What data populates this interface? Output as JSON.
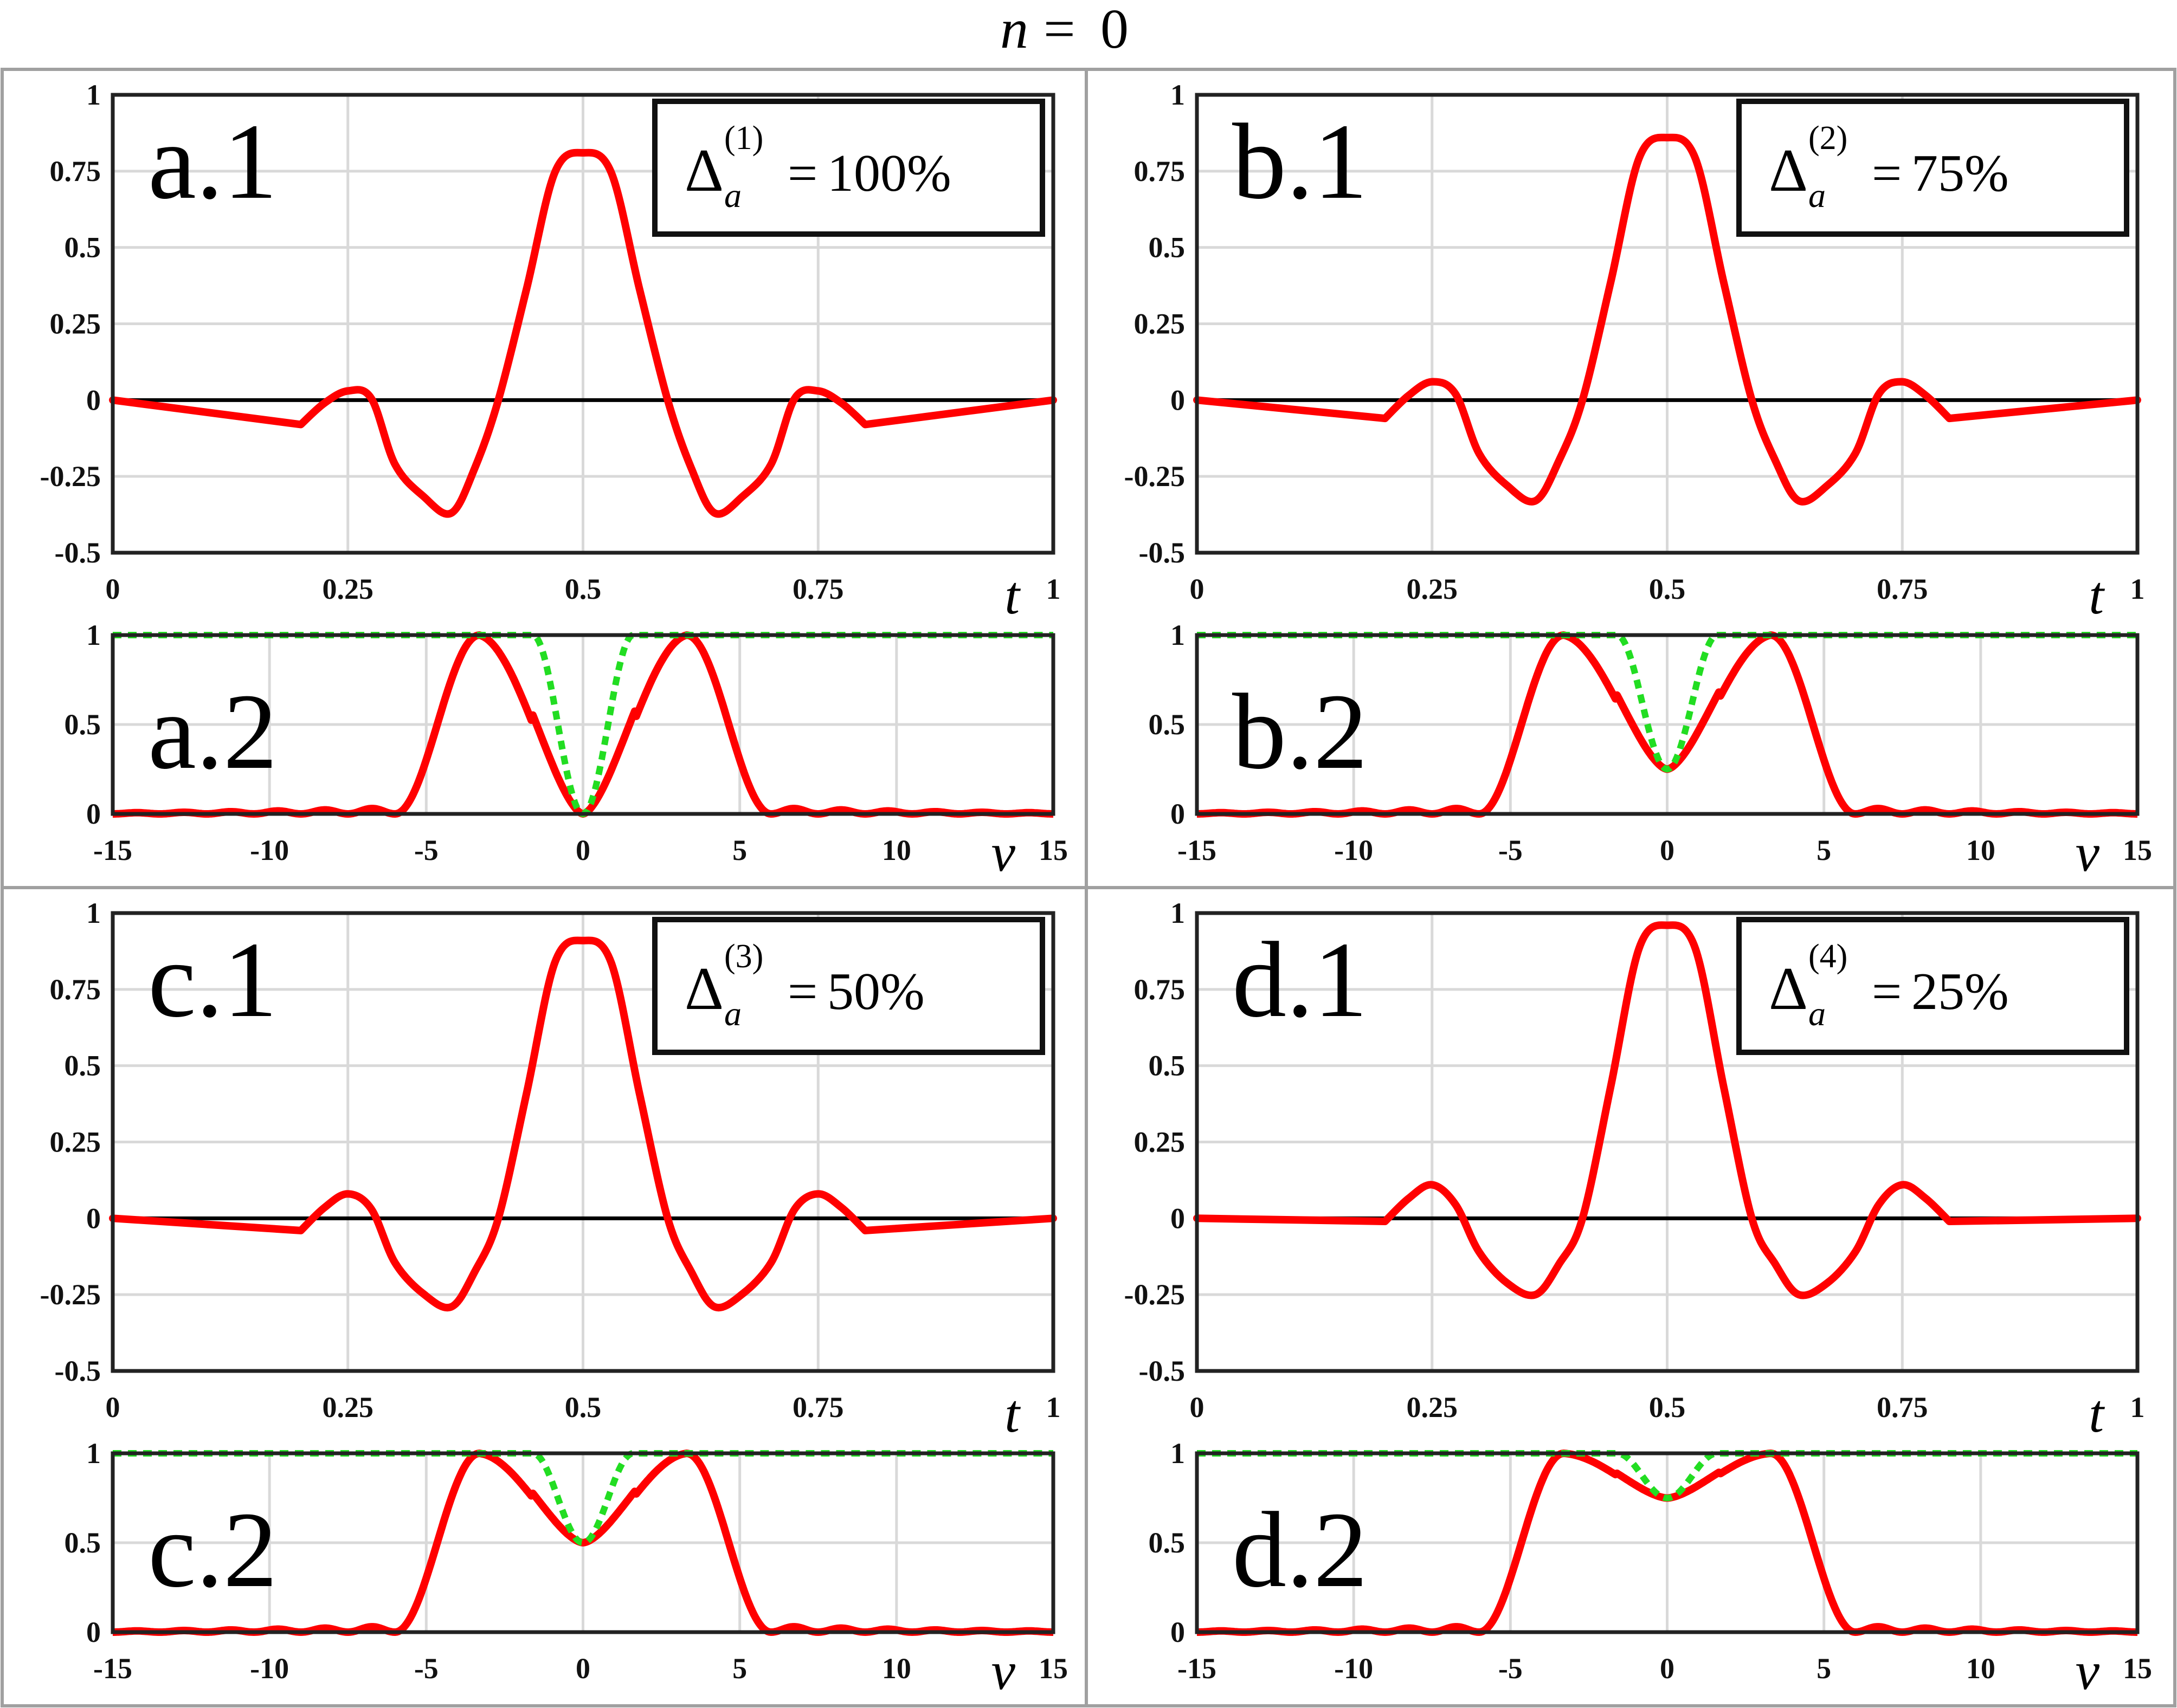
{
  "figure_title": {
    "var": "n",
    "eq": "=",
    "value": "0"
  },
  "chart_data": [
    {
      "id": "a",
      "type": "line",
      "top": {
        "label": "a.1",
        "xlabel": "t",
        "xlim": [
          0,
          1
        ],
        "ylim": [
          -0.5,
          1
        ],
        "xticks": [
          0,
          0.25,
          0.5,
          0.75,
          1
        ],
        "xtick_labels": [
          "0",
          "0.25",
          "0.5",
          "0.75",
          "1"
        ],
        "yticks": [
          -0.5,
          -0.25,
          0,
          0.25,
          0.5,
          0.75,
          1
        ],
        "ytick_labels": [
          "-0.5",
          "-0.25",
          "0",
          "0.25",
          "0.5",
          "0.75",
          "1"
        ],
        "series_color": "#ff0000",
        "zero_line_color": "#000000",
        "peak": 0.81,
        "side_min": -0.37,
        "side_max": 0.03,
        "edge_dip": -0.08,
        "annotation": {
          "symbol": "Δ",
          "sub": "a",
          "sup": "(1)",
          "eq": "=",
          "value": "100%"
        }
      },
      "bottom": {
        "label": "a.2",
        "xlabel": "ν",
        "xlim": [
          -15,
          15
        ],
        "ylim": [
          0,
          1
        ],
        "xticks": [
          -15,
          -10,
          -5,
          0,
          5,
          10,
          15
        ],
        "xtick_labels": [
          "-15",
          "-10",
          "-5",
          "0",
          "5",
          "10",
          "15"
        ],
        "yticks": [
          0,
          0.5,
          1
        ],
        "ytick_labels": [
          "0",
          "0.5",
          "1"
        ],
        "spectrum_color": "#ff0000",
        "filter_color": "#22dd22",
        "notch_min": 0.0
      }
    },
    {
      "id": "b",
      "type": "line",
      "top": {
        "label": "b.1",
        "xlabel": "t",
        "xlim": [
          0,
          1
        ],
        "ylim": [
          -0.5,
          1
        ],
        "xticks": [
          0,
          0.25,
          0.5,
          0.75,
          1
        ],
        "xtick_labels": [
          "0",
          "0.25",
          "0.5",
          "0.75",
          "1"
        ],
        "yticks": [
          -0.5,
          -0.25,
          0,
          0.25,
          0.5,
          0.75,
          1
        ],
        "ytick_labels": [
          "-0.5",
          "-0.25",
          "0",
          "0.25",
          "0.5",
          "0.75",
          "1"
        ],
        "series_color": "#ff0000",
        "zero_line_color": "#000000",
        "peak": 0.86,
        "side_min": -0.33,
        "side_max": 0.06,
        "edge_dip": -0.06,
        "annotation": {
          "symbol": "Δ",
          "sub": "a",
          "sup": "(2)",
          "eq": "=",
          "value": "75%"
        }
      },
      "bottom": {
        "label": "b.2",
        "xlabel": "ν",
        "xlim": [
          -15,
          15
        ],
        "ylim": [
          0,
          1
        ],
        "xticks": [
          -15,
          -10,
          -5,
          0,
          5,
          10,
          15
        ],
        "xtick_labels": [
          "-15",
          "-10",
          "-5",
          "0",
          "5",
          "10",
          "15"
        ],
        "yticks": [
          0,
          0.5,
          1
        ],
        "ytick_labels": [
          "0",
          "0.5",
          "1"
        ],
        "spectrum_color": "#ff0000",
        "filter_color": "#22dd22",
        "notch_min": 0.25
      }
    },
    {
      "id": "c",
      "type": "line",
      "top": {
        "label": "c.1",
        "xlabel": "t",
        "xlim": [
          0,
          1
        ],
        "ylim": [
          -0.5,
          1
        ],
        "xticks": [
          0,
          0.25,
          0.5,
          0.75,
          1
        ],
        "xtick_labels": [
          "0",
          "0.25",
          "0.5",
          "0.75",
          "1"
        ],
        "yticks": [
          -0.5,
          -0.25,
          0,
          0.25,
          0.5,
          0.75,
          1
        ],
        "ytick_labels": [
          "-0.5",
          "-0.25",
          "0",
          "0.25",
          "0.5",
          "0.75",
          "1"
        ],
        "series_color": "#ff0000",
        "zero_line_color": "#000000",
        "peak": 0.91,
        "side_min": -0.29,
        "side_max": 0.08,
        "edge_dip": -0.04,
        "annotation": {
          "symbol": "Δ",
          "sub": "a",
          "sup": "(3)",
          "eq": "=",
          "value": "50%"
        }
      },
      "bottom": {
        "label": "c.2",
        "xlabel": "ν",
        "xlim": [
          -15,
          15
        ],
        "ylim": [
          0,
          1
        ],
        "xticks": [
          -15,
          -10,
          -5,
          0,
          5,
          10,
          15
        ],
        "xtick_labels": [
          "-15",
          "-10",
          "-5",
          "0",
          "5",
          "10",
          "15"
        ],
        "yticks": [
          0,
          0.5,
          1
        ],
        "ytick_labels": [
          "0",
          "0.5",
          "1"
        ],
        "spectrum_color": "#ff0000",
        "filter_color": "#22dd22",
        "notch_min": 0.5
      }
    },
    {
      "id": "d",
      "type": "line",
      "top": {
        "label": "d.1",
        "xlabel": "t",
        "xlim": [
          0,
          1
        ],
        "ylim": [
          -0.5,
          1
        ],
        "xticks": [
          0,
          0.25,
          0.5,
          0.75,
          1
        ],
        "xtick_labels": [
          "0",
          "0.25",
          "0.5",
          "0.75",
          "1"
        ],
        "yticks": [
          -0.5,
          -0.25,
          0,
          0.25,
          0.5,
          0.75,
          1
        ],
        "ytick_labels": [
          "-0.5",
          "-0.25",
          "0",
          "0.25",
          "0.5",
          "0.75",
          "1"
        ],
        "series_color": "#ff0000",
        "zero_line_color": "#000000",
        "peak": 0.96,
        "side_min": -0.25,
        "side_max": 0.11,
        "edge_dip": -0.01,
        "annotation": {
          "symbol": "Δ",
          "sub": "a",
          "sup": "(4)",
          "eq": "=",
          "value": "25%"
        }
      },
      "bottom": {
        "label": "d.2",
        "xlabel": "ν",
        "xlim": [
          -15,
          15
        ],
        "ylim": [
          0,
          1
        ],
        "xticks": [
          -15,
          -10,
          -5,
          0,
          5,
          10,
          15
        ],
        "xtick_labels": [
          "-15",
          "-10",
          "-5",
          "0",
          "5",
          "10",
          "15"
        ],
        "yticks": [
          0,
          0.5,
          1
        ],
        "ytick_labels": [
          "0",
          "0.5",
          "1"
        ],
        "spectrum_color": "#ff0000",
        "filter_color": "#22dd22",
        "notch_min": 0.75
      }
    }
  ]
}
